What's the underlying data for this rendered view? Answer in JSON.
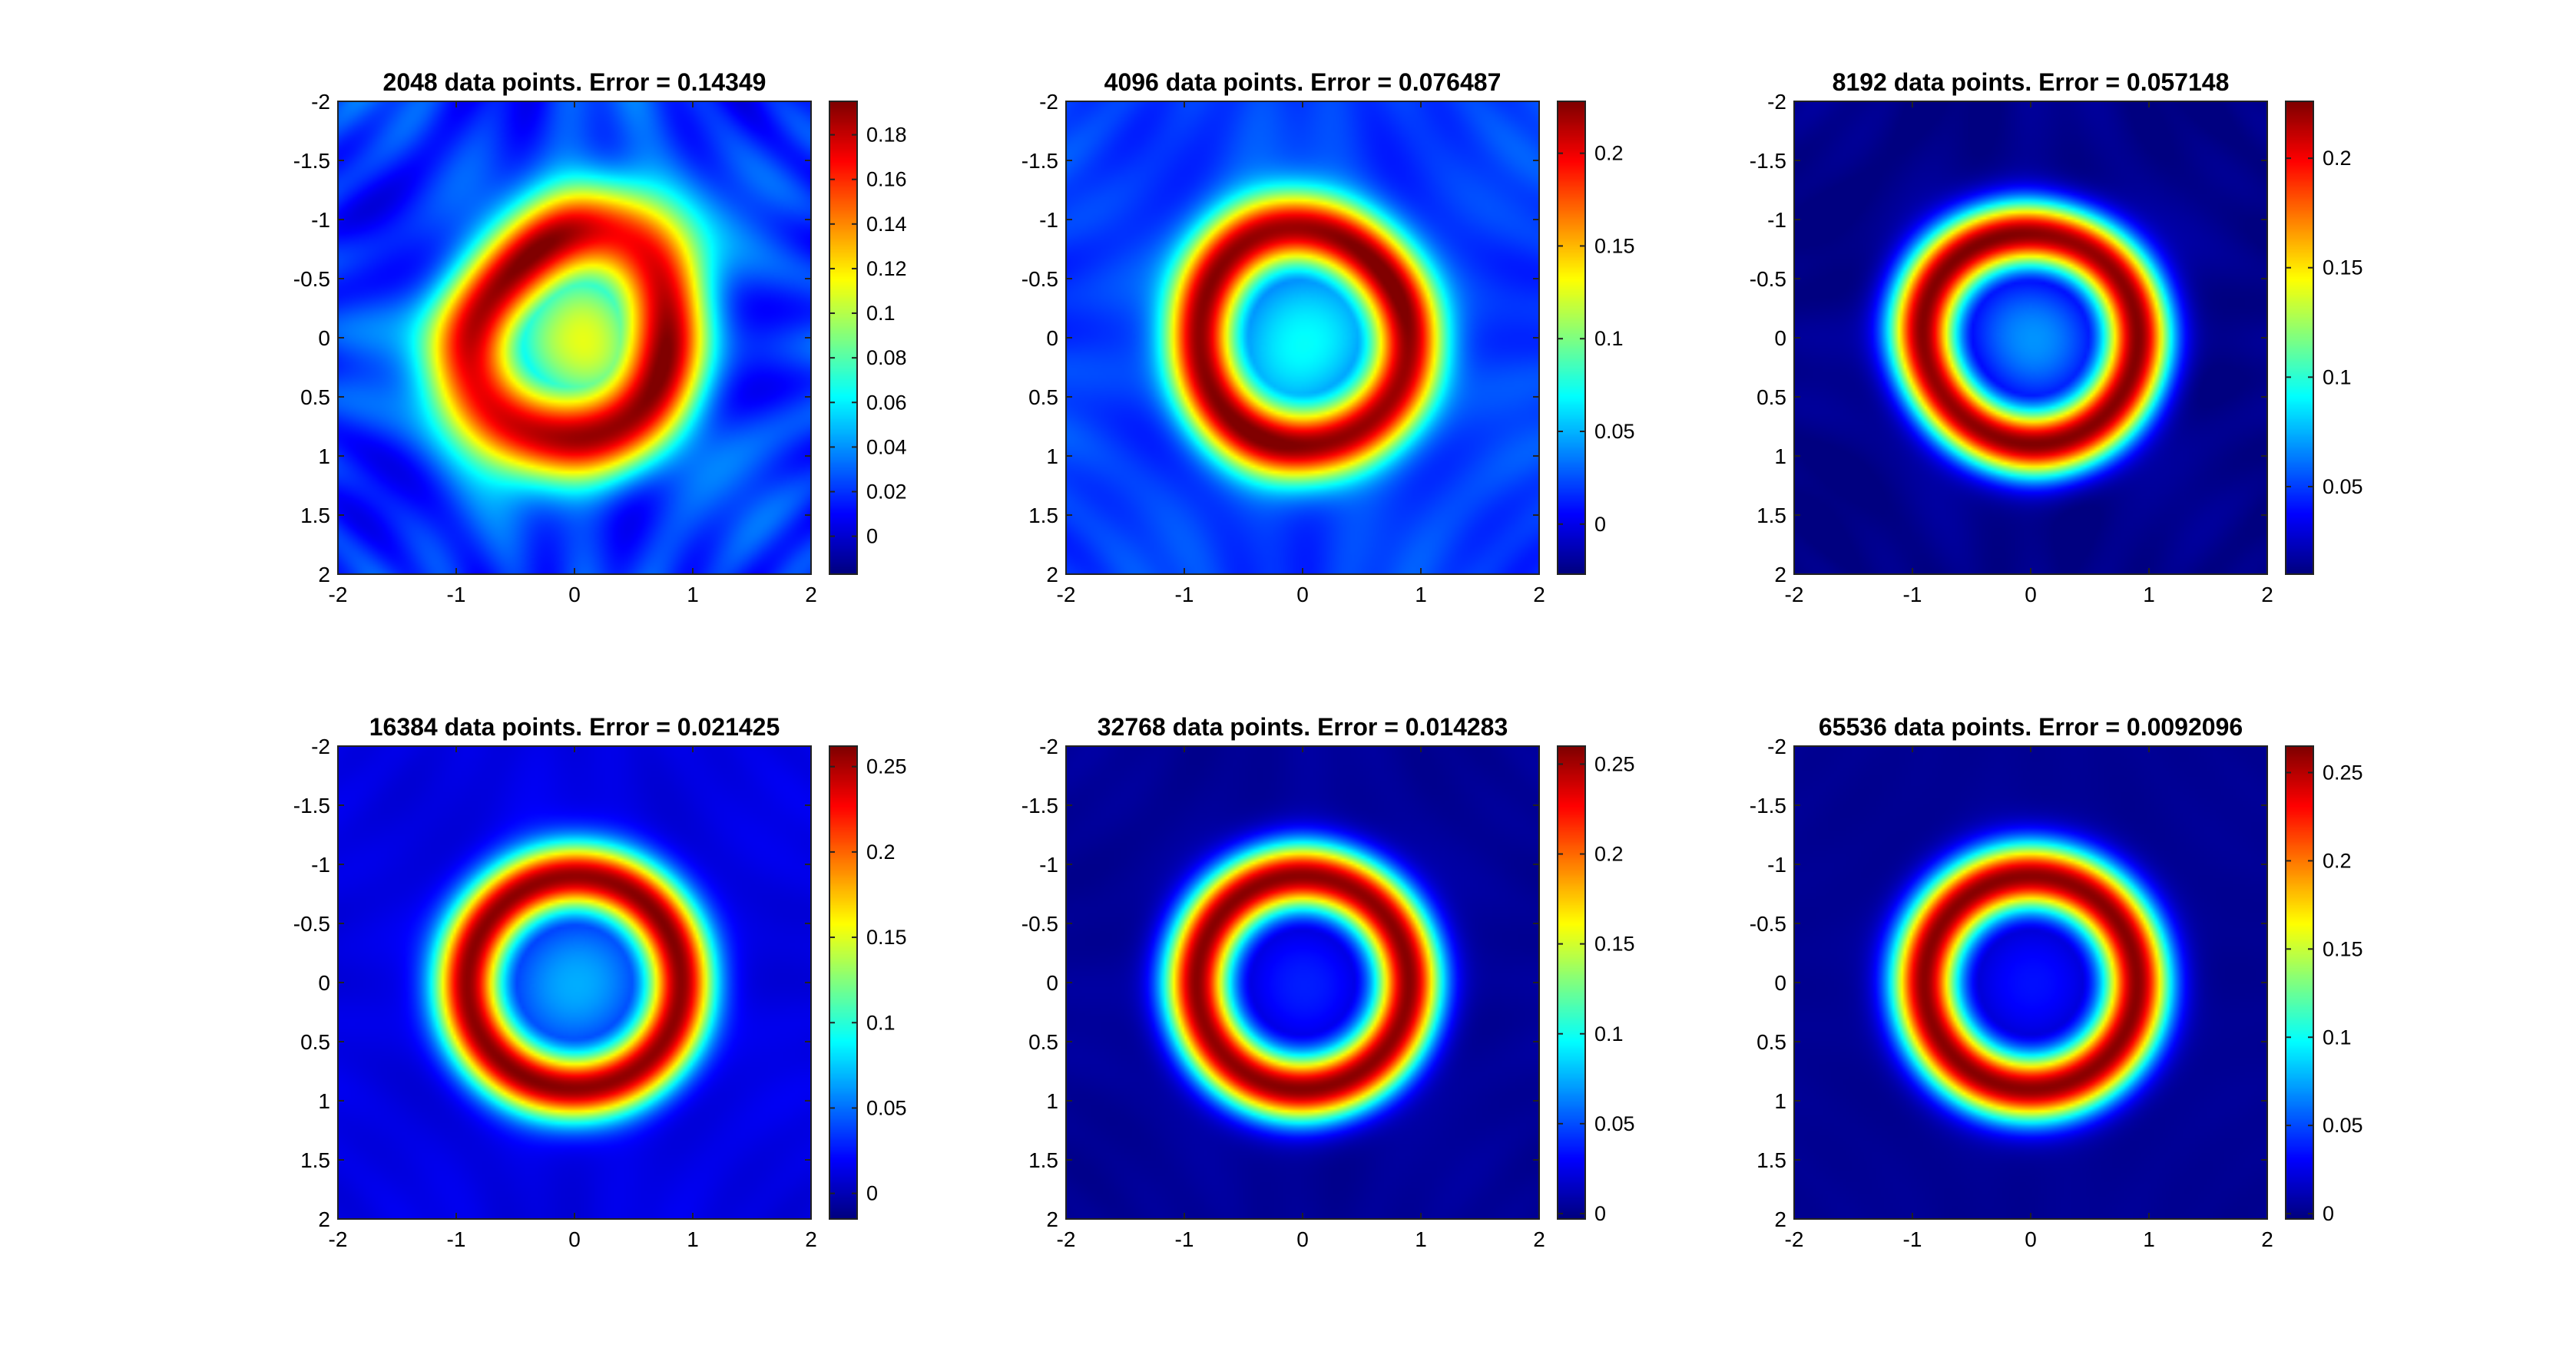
{
  "colormap": "jet",
  "colormap_stops": [
    "#00008f",
    "#0000ff",
    "#00ffff",
    "#ffff00",
    "#ff0000",
    "#800000"
  ],
  "chart_data": [
    {
      "type": "heatmap",
      "title": "2048 data points. Error = 0.14349",
      "xlim": [
        -2,
        2
      ],
      "ylim": [
        -2,
        2
      ],
      "y_reversed": true,
      "x_ticks": [
        "-2",
        "-1",
        "0",
        "1",
        "2"
      ],
      "y_ticks": [
        "-2",
        "-1.5",
        "-1",
        "-0.5",
        "0",
        "0.5",
        "1",
        "1.5",
        "2"
      ],
      "clim": [
        -0.017,
        0.195
      ],
      "colorbar_ticks": [
        "0",
        "0.02",
        "0.04",
        "0.06",
        "0.08",
        "0.1",
        "0.12",
        "0.14",
        "0.16",
        "0.18"
      ],
      "field": {
        "ring_radius": 0.85,
        "ring_width": 0.38,
        "ring_peak": 0.185,
        "center_value": 0.1,
        "background": 0.02,
        "noise": 0.012,
        "distortion": 0.12
      }
    },
    {
      "type": "heatmap",
      "title": "4096 data points. Error = 0.076487",
      "xlim": [
        -2,
        2
      ],
      "ylim": [
        -2,
        2
      ],
      "y_reversed": true,
      "x_ticks": [
        "-2",
        "-1",
        "0",
        "1",
        "2"
      ],
      "y_ticks": [
        "-2",
        "-1.5",
        "-1",
        "-0.5",
        "0",
        "0.5",
        "1",
        "1.5",
        "2"
      ],
      "clim": [
        -0.027,
        0.228
      ],
      "colorbar_ticks": [
        "0",
        "0.05",
        "0.1",
        "0.15",
        "0.2"
      ],
      "field": {
        "ring_radius": 0.9,
        "ring_width": 0.3,
        "ring_peak": 0.225,
        "center_value": 0.075,
        "background": 0.02,
        "noise": 0.006,
        "distortion": 0.04
      }
    },
    {
      "type": "heatmap",
      "title": "8192 data points. Error = 0.057148",
      "xlim": [
        -2,
        2
      ],
      "ylim": [
        -2,
        2
      ],
      "y_reversed": true,
      "x_ticks": [
        "-2",
        "-1",
        "0",
        "1",
        "2"
      ],
      "y_ticks": [
        "-2",
        "-1.5",
        "-1",
        "-0.5",
        "0",
        "0.5",
        "1",
        "1.5",
        "2"
      ],
      "clim": [
        0.01,
        0.226
      ],
      "colorbar_ticks": [
        "0.05",
        "0.1",
        "0.15",
        "0.2"
      ],
      "field": {
        "ring_radius": 0.9,
        "ring_width": 0.28,
        "ring_peak": 0.224,
        "center_value": 0.065,
        "background": 0.012,
        "noise": 0.003,
        "distortion": 0.03
      }
    },
    {
      "type": "heatmap",
      "title": "16384 data points. Error = 0.021425",
      "xlim": [
        -2,
        2
      ],
      "ylim": [
        -2,
        2
      ],
      "y_reversed": true,
      "x_ticks": [
        "-2",
        "-1",
        "0",
        "1",
        "2"
      ],
      "y_ticks": [
        "-2",
        "-1.5",
        "-1",
        "-0.5",
        "0",
        "0.5",
        "1",
        "1.5",
        "2"
      ],
      "clim": [
        -0.015,
        0.262
      ],
      "colorbar_ticks": [
        "0",
        "0.05",
        "0.1",
        "0.15",
        "0.2",
        "0.25"
      ],
      "field": {
        "ring_radius": 0.9,
        "ring_width": 0.28,
        "ring_peak": 0.258,
        "center_value": 0.07,
        "background": 0.012,
        "noise": 0.003,
        "distortion": 0.01
      }
    },
    {
      "type": "heatmap",
      "title": "32768 data points. Error = 0.014283",
      "xlim": [
        -2,
        2
      ],
      "ylim": [
        -2,
        2
      ],
      "y_reversed": true,
      "x_ticks": [
        "-2",
        "-1",
        "0",
        "1",
        "2"
      ],
      "y_ticks": [
        "-2",
        "-1.5",
        "-1",
        "-0.5",
        "0",
        "0.5",
        "1",
        "1.5",
        "2"
      ],
      "clim": [
        -0.003,
        0.26
      ],
      "colorbar_ticks": [
        "0",
        "0.05",
        "0.1",
        "0.15",
        "0.2",
        "0.25"
      ],
      "field": {
        "ring_radius": 0.9,
        "ring_width": 0.28,
        "ring_peak": 0.257,
        "center_value": 0.035,
        "background": 0.003,
        "noise": 0.002,
        "distortion": 0.005
      }
    },
    {
      "type": "heatmap",
      "title": "65536 data points. Error = 0.0092096",
      "xlim": [
        -2,
        2
      ],
      "ylim": [
        -2,
        2
      ],
      "y_reversed": true,
      "x_ticks": [
        "-2",
        "-1",
        "0",
        "1",
        "2"
      ],
      "y_ticks": [
        "-2",
        "-1.5",
        "-1",
        "-0.5",
        "0",
        "0.5",
        "1",
        "1.5",
        "2"
      ],
      "clim": [
        -0.003,
        0.265
      ],
      "colorbar_ticks": [
        "0",
        "0.05",
        "0.1",
        "0.15",
        "0.2",
        "0.25"
      ],
      "field": {
        "ring_radius": 0.9,
        "ring_width": 0.28,
        "ring_peak": 0.262,
        "center_value": 0.035,
        "background": 0.002,
        "noise": 0.001,
        "distortion": 0.0
      }
    }
  ]
}
